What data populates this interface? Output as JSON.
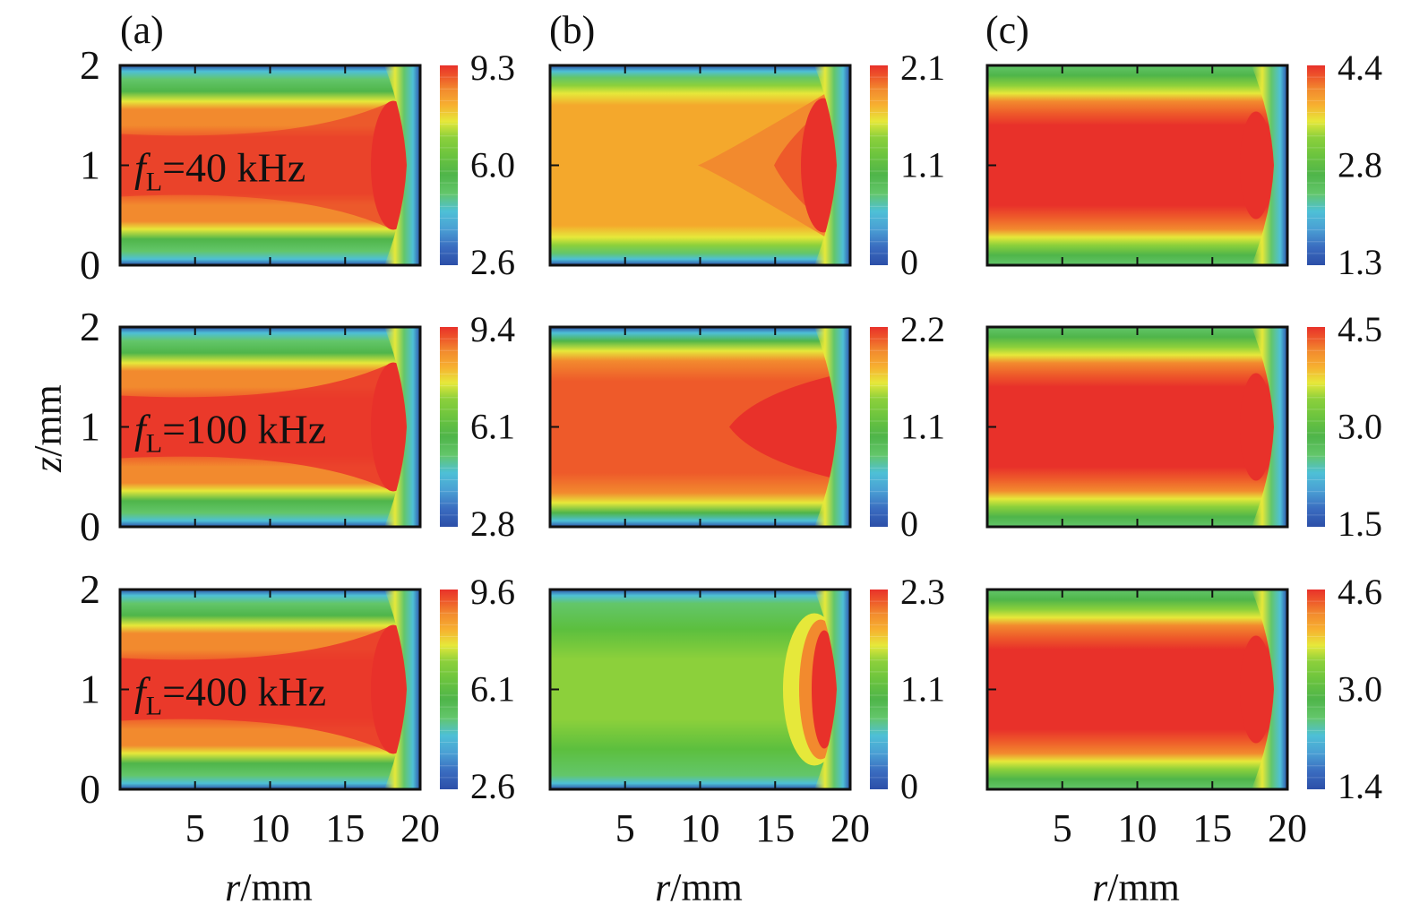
{
  "figure": {
    "column_labels": [
      "(a)",
      "(b)",
      "(c)"
    ],
    "x_axis_label": "r/mm",
    "y_axis_label": "z/mm",
    "x_ticks": [
      "5",
      "10",
      "15",
      "20"
    ],
    "y_ticks": [
      "0",
      "1",
      "2"
    ],
    "row_annotations": [
      {
        "var": "f",
        "sub": "L",
        "text": "=40 kHz"
      },
      {
        "var": "f",
        "sub": "L",
        "text": "=100 kHz"
      },
      {
        "var": "f",
        "sub": "L",
        "text": "=400 kHz"
      }
    ],
    "colorscale": [
      "#2c4fa8",
      "#3b7dcc",
      "#4ec0d6",
      "#63c66a",
      "#4fb54a",
      "#8cd03b",
      "#e6e83a",
      "#f7b030",
      "#f28a2e",
      "#ee5a2a",
      "#e8312a"
    ]
  },
  "chart_data": [
    {
      "type": "heatmap",
      "panel": "(a)",
      "row": 0,
      "annotation": "fL=40 kHz",
      "x_range": [
        0,
        20
      ],
      "y_range": [
        0,
        2
      ],
      "colorbar_ticks": [
        "9.3",
        "6.0",
        "2.6"
      ],
      "value_range": [
        2.6,
        9.3
      ]
    },
    {
      "type": "heatmap",
      "panel": "(b)",
      "row": 0,
      "annotation": "fL=40 kHz",
      "x_range": [
        0,
        20
      ],
      "y_range": [
        0,
        2
      ],
      "colorbar_ticks": [
        "2.1",
        "1.1",
        "0"
      ],
      "value_range": [
        0,
        2.1
      ]
    },
    {
      "type": "heatmap",
      "panel": "(c)",
      "row": 0,
      "annotation": "fL=40 kHz",
      "x_range": [
        0,
        20
      ],
      "y_range": [
        0,
        2
      ],
      "colorbar_ticks": [
        "4.4",
        "2.8",
        "1.3"
      ],
      "value_range": [
        1.3,
        4.4
      ]
    },
    {
      "type": "heatmap",
      "panel": "(a)",
      "row": 1,
      "annotation": "fL=100 kHz",
      "x_range": [
        0,
        20
      ],
      "y_range": [
        0,
        2
      ],
      "colorbar_ticks": [
        "9.4",
        "6.1",
        "2.8"
      ],
      "value_range": [
        2.8,
        9.4
      ]
    },
    {
      "type": "heatmap",
      "panel": "(b)",
      "row": 1,
      "annotation": "fL=100 kHz",
      "x_range": [
        0,
        20
      ],
      "y_range": [
        0,
        2
      ],
      "colorbar_ticks": [
        "2.2",
        "1.1",
        "0"
      ],
      "value_range": [
        0,
        2.2
      ]
    },
    {
      "type": "heatmap",
      "panel": "(c)",
      "row": 1,
      "annotation": "fL=100 kHz",
      "x_range": [
        0,
        20
      ],
      "y_range": [
        0,
        2
      ],
      "colorbar_ticks": [
        "4.5",
        "3.0",
        "1.5"
      ],
      "value_range": [
        1.5,
        4.5
      ]
    },
    {
      "type": "heatmap",
      "panel": "(a)",
      "row": 2,
      "annotation": "fL=400 kHz",
      "x_range": [
        0,
        20
      ],
      "y_range": [
        0,
        2
      ],
      "colorbar_ticks": [
        "9.6",
        "6.1",
        "2.6"
      ],
      "value_range": [
        2.6,
        9.6
      ]
    },
    {
      "type": "heatmap",
      "panel": "(b)",
      "row": 2,
      "annotation": "fL=400 kHz",
      "x_range": [
        0,
        20
      ],
      "y_range": [
        0,
        2
      ],
      "colorbar_ticks": [
        "2.3",
        "1.1",
        "0"
      ],
      "value_range": [
        0,
        2.3
      ]
    },
    {
      "type": "heatmap",
      "panel": "(c)",
      "row": 2,
      "annotation": "fL=400 kHz",
      "x_range": [
        0,
        20
      ],
      "y_range": [
        0,
        2
      ],
      "colorbar_ticks": [
        "4.6",
        "3.0",
        "1.4"
      ],
      "value_range": [
        1.4,
        4.6
      ]
    }
  ]
}
